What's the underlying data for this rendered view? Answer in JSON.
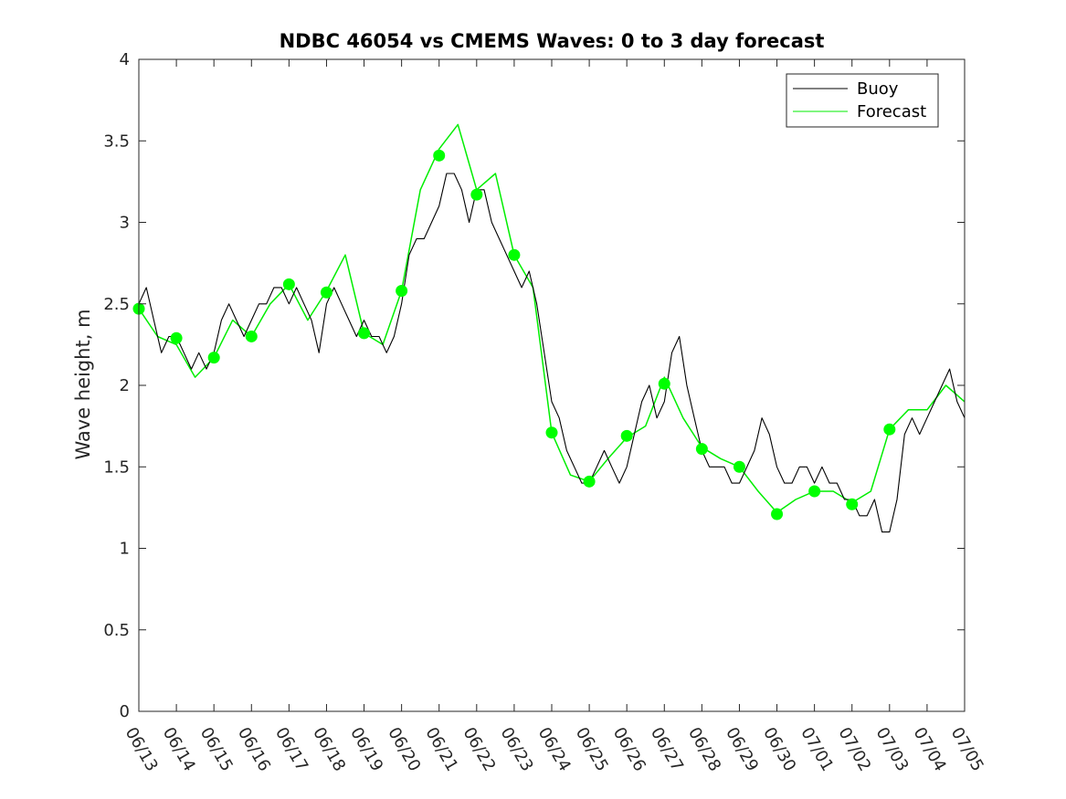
{
  "chart_data": {
    "type": "line",
    "title": "NDBC 46054 vs CMEMS Waves: 0 to 3 day forecast",
    "xlabel": "",
    "ylabel": "Wave height, m",
    "ylim": [
      0,
      4
    ],
    "yticks": [
      "0",
      "0.5",
      "1",
      "1.5",
      "2",
      "2.5",
      "3",
      "3.5",
      "4"
    ],
    "x_range_days": [
      0,
      22
    ],
    "xticks": [
      "06/13",
      "06/14",
      "06/15",
      "06/16",
      "06/17",
      "06/18",
      "06/19",
      "06/20",
      "06/21",
      "06/22",
      "06/23",
      "06/24",
      "06/25",
      "06/26",
      "06/27",
      "06/28",
      "06/29",
      "06/30",
      "07/01",
      "07/02",
      "07/03",
      "07/04",
      "07/05"
    ],
    "legend": {
      "placement": "top-right",
      "entries": [
        "Buoy",
        "Forecast"
      ]
    },
    "colors": {
      "buoy": "#000000",
      "forecast": "#00ee00",
      "marker": "#00ff00"
    },
    "series": [
      {
        "name": "Buoy",
        "x": [
          0,
          0.2,
          0.4,
          0.6,
          0.8,
          1,
          1.2,
          1.4,
          1.6,
          1.8,
          2,
          2.2,
          2.4,
          2.6,
          2.8,
          3,
          3.2,
          3.4,
          3.6,
          3.8,
          4,
          4.2,
          4.4,
          4.6,
          4.8,
          5,
          5.2,
          5.4,
          5.6,
          5.8,
          6,
          6.2,
          6.4,
          6.6,
          6.8,
          7,
          7.2,
          7.4,
          7.6,
          7.8,
          8,
          8.2,
          8.4,
          8.6,
          8.8,
          9,
          9.2,
          9.4,
          9.6,
          9.8,
          10,
          10.2,
          10.4,
          10.6,
          10.8,
          11,
          11.2,
          11.4,
          11.6,
          11.8,
          12,
          12.2,
          12.4,
          12.6,
          12.8,
          13,
          13.2,
          13.4,
          13.6,
          13.8,
          14,
          14.2,
          14.4,
          14.6,
          14.8,
          15,
          15.2,
          15.4,
          15.6,
          15.8,
          16,
          16.2,
          16.4,
          16.6,
          16.8,
          17,
          17.2,
          17.4,
          17.6,
          17.8,
          18,
          18.2,
          18.4,
          18.6,
          18.8,
          19,
          19.2,
          19.4,
          19.6,
          19.8,
          20,
          20.2,
          20.4,
          20.6,
          20.8,
          21,
          21.2,
          21.4,
          21.6,
          21.8,
          22
        ],
        "values": [
          2.5,
          2.6,
          2.4,
          2.2,
          2.3,
          2.3,
          2.2,
          2.1,
          2.2,
          2.1,
          2.2,
          2.4,
          2.5,
          2.4,
          2.3,
          2.4,
          2.5,
          2.5,
          2.6,
          2.6,
          2.5,
          2.6,
          2.5,
          2.4,
          2.2,
          2.5,
          2.6,
          2.5,
          2.4,
          2.3,
          2.4,
          2.3,
          2.3,
          2.2,
          2.3,
          2.5,
          2.8,
          2.9,
          2.9,
          3.0,
          3.1,
          3.3,
          3.3,
          3.2,
          3.0,
          3.2,
          3.2,
          3.0,
          2.9,
          2.8,
          2.7,
          2.6,
          2.7,
          2.5,
          2.2,
          1.9,
          1.8,
          1.6,
          1.5,
          1.4,
          1.4,
          1.5,
          1.6,
          1.5,
          1.4,
          1.5,
          1.7,
          1.9,
          2.0,
          1.8,
          1.9,
          2.2,
          2.3,
          2.0,
          1.8,
          1.6,
          1.5,
          1.5,
          1.5,
          1.4,
          1.4,
          1.5,
          1.6,
          1.8,
          1.7,
          1.5,
          1.4,
          1.4,
          1.5,
          1.5,
          1.4,
          1.5,
          1.4,
          1.4,
          1.3,
          1.3,
          1.2,
          1.2,
          1.3,
          1.1,
          1.1,
          1.3,
          1.7,
          1.8,
          1.7,
          1.8,
          1.9,
          2.0,
          2.1,
          1.9,
          1.8
        ]
      },
      {
        "name": "Forecast",
        "x": [
          0,
          0.5,
          1,
          1.5,
          2,
          2.5,
          3,
          3.5,
          4,
          4.5,
          5,
          5.5,
          6,
          6.5,
          7,
          7.5,
          8,
          8.5,
          9,
          9.5,
          10,
          10.5,
          11,
          11.5,
          12,
          12.5,
          13,
          13.5,
          14,
          14.5,
          15,
          15.5,
          16,
          16.5,
          17,
          17.5,
          18,
          18.5,
          19,
          19.5,
          20,
          20.5,
          21,
          21.5,
          22
        ],
        "values": [
          2.47,
          2.3,
          2.25,
          2.05,
          2.17,
          2.4,
          2.3,
          2.5,
          2.62,
          2.4,
          2.58,
          2.8,
          2.32,
          2.25,
          2.58,
          3.2,
          3.45,
          3.6,
          3.2,
          3.3,
          2.8,
          2.6,
          1.71,
          1.45,
          1.41,
          1.55,
          1.68,
          1.75,
          2.05,
          1.8,
          1.62,
          1.55,
          1.5,
          1.35,
          1.22,
          1.3,
          1.35,
          1.35,
          1.28,
          1.35,
          1.73,
          1.85,
          1.85,
          2.0,
          1.9
        ]
      }
    ],
    "markers": {
      "x": [
        0,
        1,
        2,
        3,
        4,
        5,
        6,
        7,
        8,
        9,
        10,
        11,
        12,
        13,
        14,
        15,
        16,
        17,
        18,
        19,
        20
      ],
      "values": [
        2.47,
        2.29,
        2.17,
        2.3,
        2.62,
        2.57,
        2.32,
        2.58,
        3.41,
        3.17,
        2.8,
        1.71,
        1.41,
        1.69,
        2.01,
        1.61,
        1.5,
        1.21,
        1.35,
        1.27,
        1.73
      ]
    }
  }
}
